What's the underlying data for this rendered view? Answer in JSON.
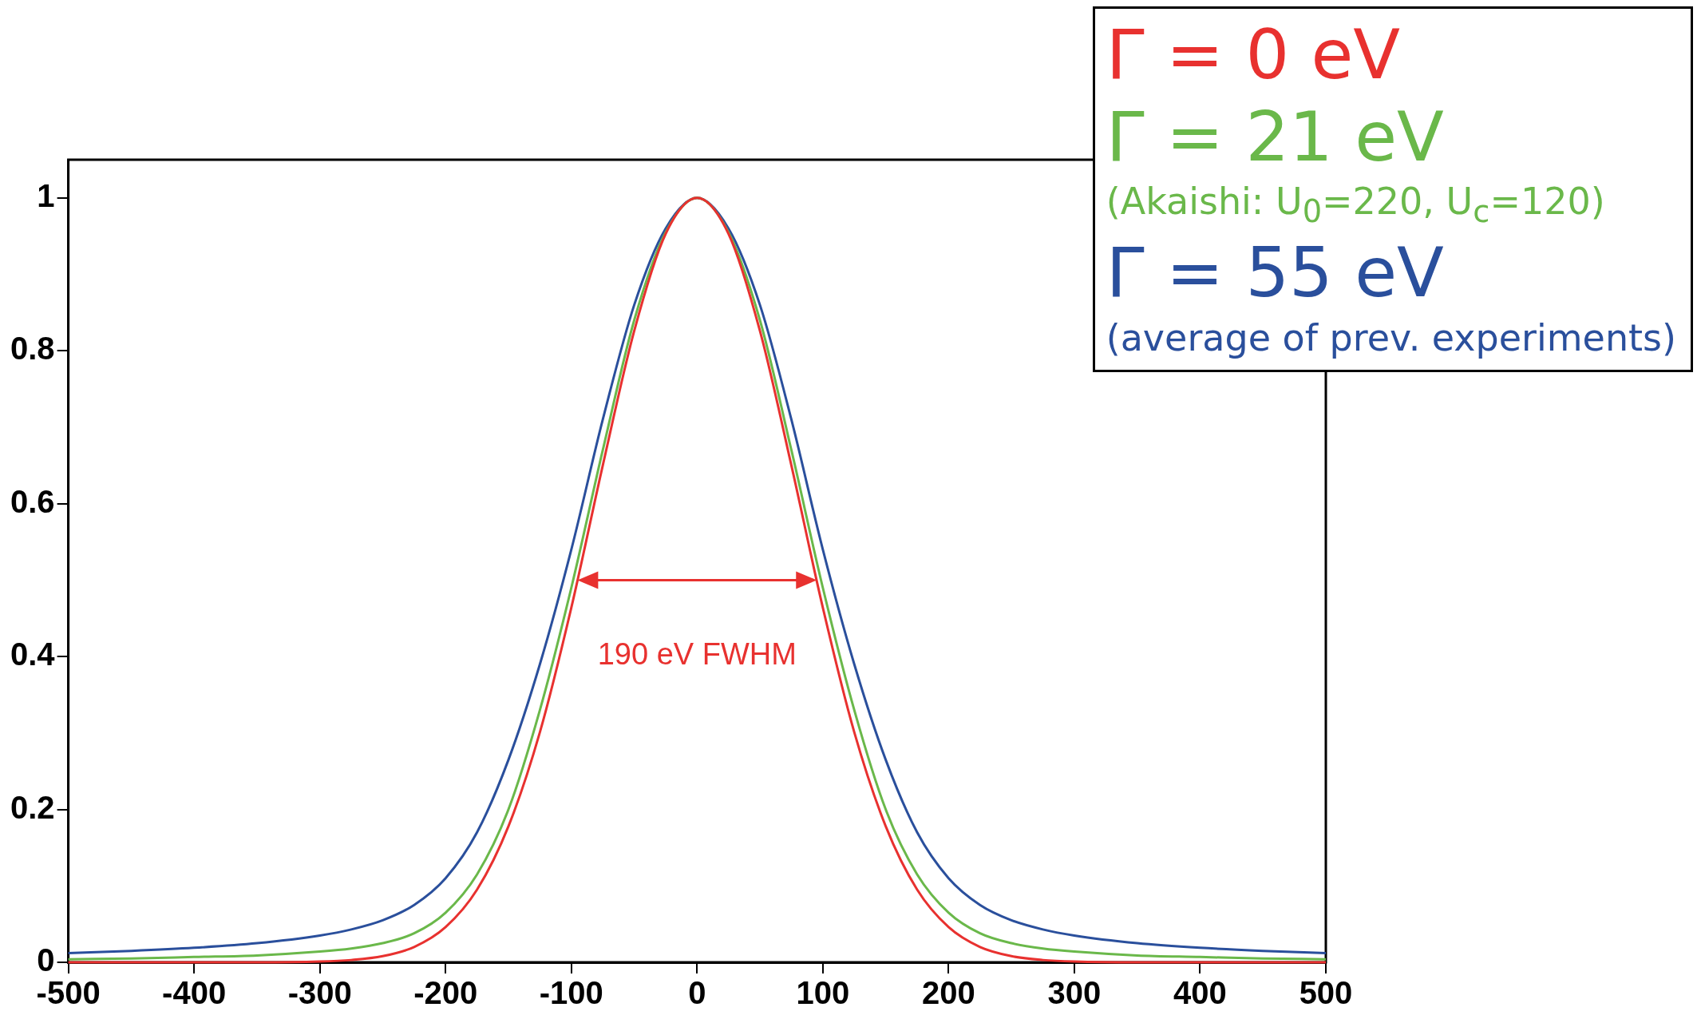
{
  "chart_data": {
    "type": "line",
    "x": [
      -500,
      -450,
      -400,
      -350,
      -300,
      -275,
      -250,
      -225,
      -200,
      -175,
      -150,
      -125,
      -100,
      -75,
      -50,
      -25,
      0,
      25,
      50,
      75,
      100,
      125,
      150,
      175,
      200,
      225,
      250,
      275,
      300,
      350,
      400,
      450,
      500
    ],
    "series": [
      {
        "name": "Γ = 0 eV",
        "color": "#e8312f",
        "values": [
          0,
          0,
          0,
          0,
          0.001,
          0.003,
          0.008,
          0.02,
          0.046,
          0.095,
          0.178,
          0.301,
          0.464,
          0.65,
          0.826,
          0.953,
          1,
          0.953,
          0.826,
          0.65,
          0.464,
          0.301,
          0.178,
          0.095,
          0.046,
          0.02,
          0.008,
          0.003,
          0.001,
          0,
          0,
          0,
          0
        ]
      },
      {
        "name": "Γ = 21 eV",
        "color": "#6ab84a",
        "values": [
          0.004,
          0.005,
          0.007,
          0.009,
          0.014,
          0.018,
          0.025,
          0.038,
          0.065,
          0.115,
          0.2,
          0.33,
          0.49,
          0.67,
          0.84,
          0.955,
          1,
          0.955,
          0.84,
          0.67,
          0.49,
          0.33,
          0.2,
          0.115,
          0.065,
          0.038,
          0.025,
          0.018,
          0.014,
          0.009,
          0.007,
          0.005,
          0.004
        ]
      },
      {
        "name": "Γ = 55 eV",
        "color": "#2a4f9c",
        "values": [
          0.012,
          0.015,
          0.019,
          0.025,
          0.035,
          0.043,
          0.055,
          0.075,
          0.11,
          0.17,
          0.265,
          0.39,
          0.54,
          0.71,
          0.86,
          0.96,
          1,
          0.96,
          0.86,
          0.71,
          0.54,
          0.39,
          0.265,
          0.17,
          0.11,
          0.075,
          0.055,
          0.043,
          0.035,
          0.025,
          0.019,
          0.015,
          0.012
        ]
      }
    ],
    "xlim": [
      -500,
      500
    ],
    "xticks": [
      -500,
      -400,
      -300,
      -200,
      -100,
      0,
      100,
      200,
      300,
      400,
      500
    ],
    "ylim": [
      0,
      1.05
    ],
    "yticks": [
      0,
      0.2,
      0.4,
      0.6,
      0.8,
      1
    ],
    "grid": false,
    "legend": "top right",
    "marker": "none",
    "line_style": "solid",
    "annotations": [
      "(Akaishi: U$_{0}$=220, U$_{c}$=120)",
      "(average of prev. experiments)",
      "190 eV FWHM"
    ]
  }
}
